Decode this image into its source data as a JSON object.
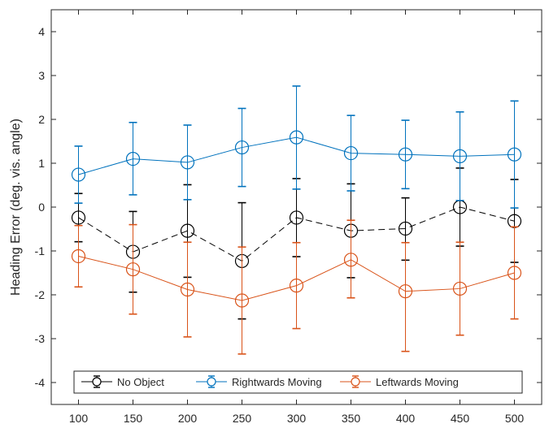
{
  "chart_data": {
    "type": "line",
    "title": "",
    "xlabel": "",
    "ylabel": "Heading Error (deg. vis. angle)",
    "x": [
      100,
      150,
      200,
      250,
      300,
      350,
      400,
      450,
      500
    ],
    "xlim": [
      75,
      525
    ],
    "ylim": [
      -4.5,
      4.5
    ],
    "xticks": [
      "100",
      "150",
      "200",
      "250",
      "300",
      "350",
      "400",
      "450",
      "500"
    ],
    "yticks": [
      "-4",
      "-3",
      "-2",
      "-1",
      "0",
      "1",
      "2",
      "3",
      "4"
    ],
    "grid": false,
    "legend_position": "bottom",
    "series": [
      {
        "name": "No Object",
        "color": "#000000",
        "line_style": "dashed",
        "marker": "open-circle",
        "values": [
          -0.24,
          -1.02,
          -0.54,
          -1.23,
          -0.24,
          -0.54,
          -0.49,
          0.0,
          -0.32
        ],
        "err_lower": [
          -0.79,
          -1.94,
          -1.6,
          -2.55,
          -1.13,
          -1.61,
          -1.21,
          -0.89,
          -1.26
        ],
        "err_upper": [
          0.31,
          -0.1,
          0.51,
          0.1,
          0.65,
          0.53,
          0.21,
          0.89,
          0.63
        ]
      },
      {
        "name": "Rightwards Moving",
        "color": "#0072BD",
        "line_style": "solid",
        "marker": "open-circle",
        "values": [
          0.74,
          1.1,
          1.02,
          1.36,
          1.59,
          1.23,
          1.2,
          1.16,
          1.2
        ],
        "err_lower": [
          0.09,
          0.28,
          0.17,
          0.47,
          0.41,
          0.37,
          0.42,
          0.15,
          -0.02
        ],
        "err_upper": [
          1.39,
          1.93,
          1.87,
          2.25,
          2.76,
          2.09,
          1.98,
          2.17,
          2.42
        ]
      },
      {
        "name": "Leftwards Moving",
        "color": "#D95319",
        "line_style": "solid",
        "marker": "open-circle",
        "values": [
          -1.12,
          -1.42,
          -1.88,
          -2.13,
          -1.79,
          -1.2,
          -1.92,
          -1.86,
          -1.5
        ],
        "err_lower": [
          -1.82,
          -2.44,
          -2.96,
          -3.35,
          -2.77,
          -2.07,
          -3.29,
          -2.92,
          -2.55
        ],
        "err_upper": [
          -0.42,
          -0.4,
          -0.8,
          -0.91,
          -0.81,
          -0.3,
          -0.81,
          -0.8,
          -0.45
        ]
      }
    ]
  }
}
